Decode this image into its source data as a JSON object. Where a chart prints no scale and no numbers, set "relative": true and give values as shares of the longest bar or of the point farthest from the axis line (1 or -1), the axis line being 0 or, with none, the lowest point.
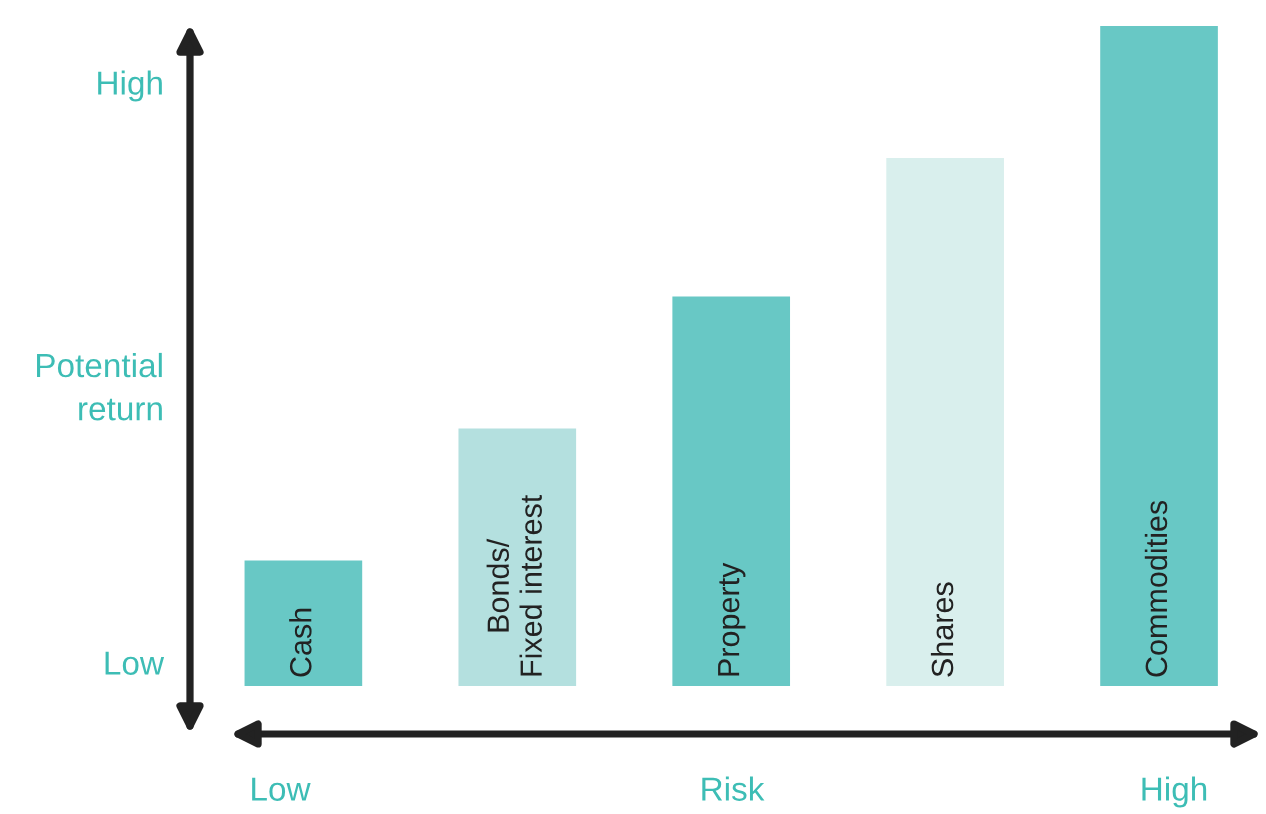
{
  "chart_data": {
    "type": "bar",
    "relative": true,
    "categories": [
      "Cash",
      "Bonds/\nFixed interest",
      "Property",
      "Shares",
      "Commodities"
    ],
    "values": [
      0.19,
      0.39,
      0.59,
      0.8,
      1.0
    ],
    "colors": [
      "#68c8c5",
      "#b4e0df",
      "#68c8c5",
      "#d9efed",
      "#68c8c5"
    ],
    "xlabel": "Risk",
    "ylabel": "Potential\nreturn",
    "annotations": [
      "High",
      "Low",
      "Low",
      "High"
    ]
  }
}
